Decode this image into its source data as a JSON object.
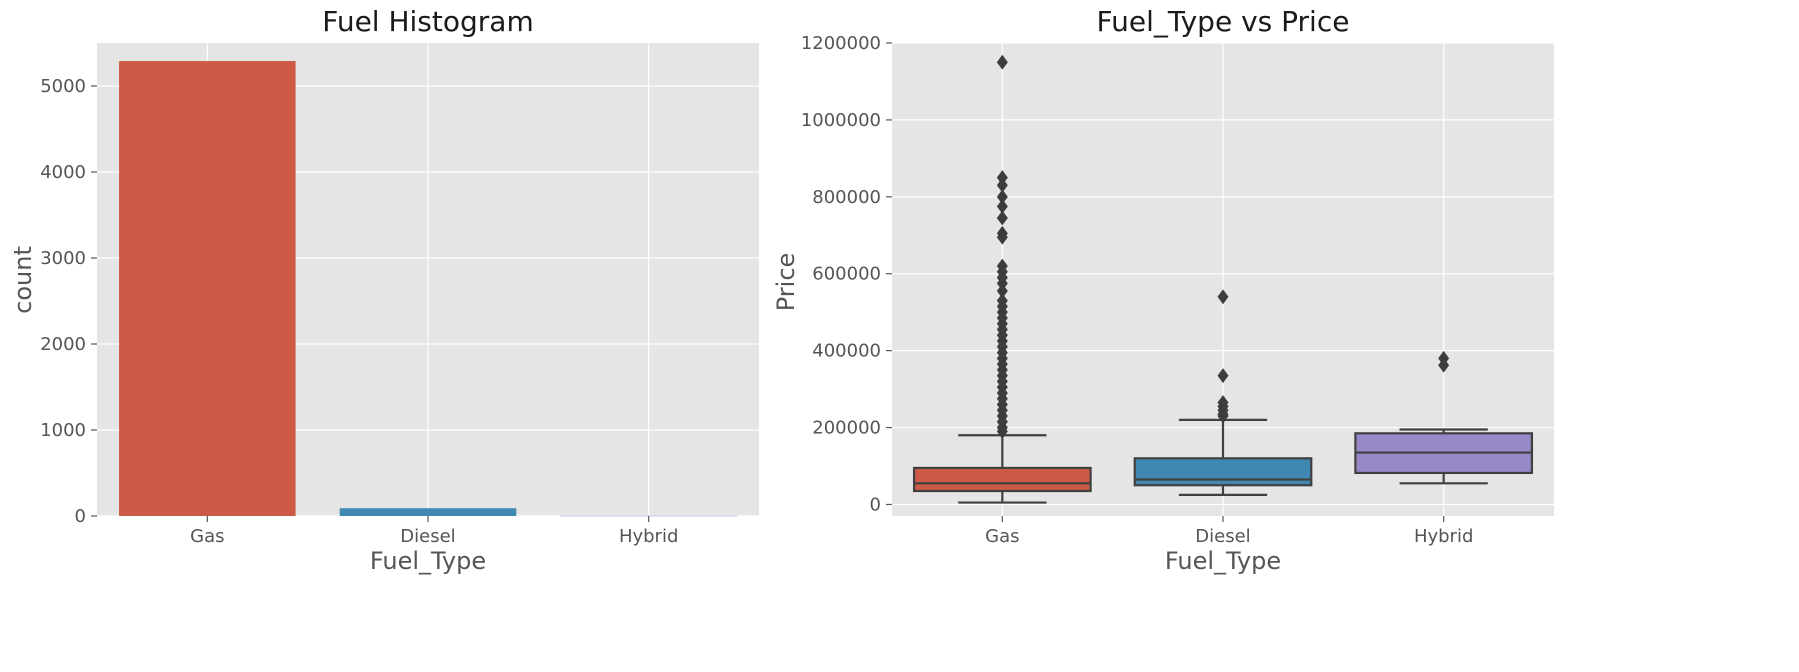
{
  "chart_data": [
    {
      "type": "bar",
      "title": "Fuel Histogram",
      "xlabel": "Fuel_Type",
      "ylabel": "count",
      "categories": [
        "Gas",
        "Diesel",
        "Hybrid"
      ],
      "values": [
        5290,
        90,
        3
      ],
      "colors": [
        "#cd5a46",
        "#3f88b2",
        "#9888c8"
      ],
      "ylim": [
        0,
        5500
      ],
      "yticks": [
        0,
        1000,
        2000,
        3000,
        4000,
        5000
      ],
      "ytick_labels": [
        "0",
        "1000",
        "2000",
        "3000",
        "4000",
        "5000"
      ],
      "grid": true,
      "background": "#e5e5e5"
    },
    {
      "type": "box",
      "title": "Fuel_Type vs Price",
      "xlabel": "Fuel_Type",
      "ylabel": "Price",
      "categories": [
        "Gas",
        "Diesel",
        "Hybrid"
      ],
      "colors": [
        "#cd5a46",
        "#3f88b2",
        "#9888c8"
      ],
      "ylim": [
        -30000,
        1200000
      ],
      "yticks": [
        0,
        200000,
        400000,
        600000,
        800000,
        1000000,
        1200000
      ],
      "ytick_labels": [
        "0",
        "200000",
        "400000",
        "600000",
        "800000",
        "1000000",
        "1200000"
      ],
      "boxes": [
        {
          "whisker_low": 5000,
          "q1": 35000,
          "median": 55000,
          "q3": 95000,
          "whisker_high": 180000,
          "outliers": [
            1150000,
            850000,
            830000,
            800000,
            775000,
            745000,
            705000,
            695000,
            620000,
            605000,
            590000,
            575000,
            555000,
            530000,
            515000,
            500000,
            485000,
            470000,
            455000,
            440000,
            425000,
            410000,
            395000,
            380000,
            365000,
            350000,
            335000,
            320000,
            305000,
            290000,
            275000,
            260000,
            245000,
            230000,
            215000,
            200000,
            190000
          ]
        },
        {
          "whisker_low": 25000,
          "q1": 50000,
          "median": 65000,
          "q3": 120000,
          "whisker_high": 220000,
          "outliers": [
            540000,
            335000,
            265000,
            255000,
            245000,
            235000,
            230000
          ]
        },
        {
          "whisker_low": 55000,
          "q1": 82000,
          "median": 135000,
          "q3": 185000,
          "whisker_high": 195000,
          "outliers": [
            380000,
            362000
          ]
        }
      ],
      "grid": true,
      "background": "#e5e5e5"
    }
  ]
}
